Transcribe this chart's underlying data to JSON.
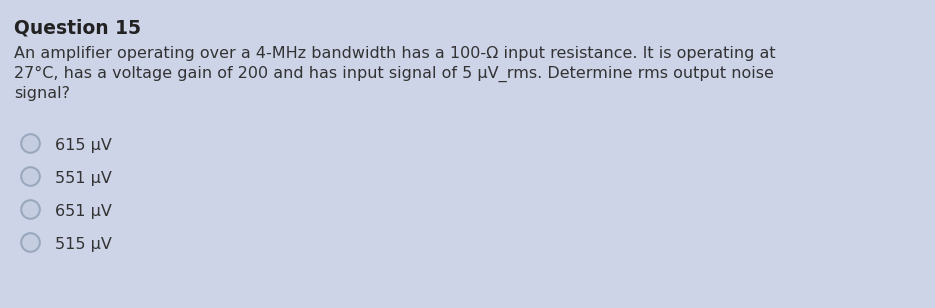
{
  "background_color": "#cdd4e8",
  "title": "Question 15",
  "title_fontsize": 13.5,
  "title_fontweight": "bold",
  "title_color": "#222222",
  "body_lines": [
    "An amplifier operating over a 4-MHz bandwidth has a 100-Ω input resistance. It is operating at",
    "27°C, has a voltage gain of 200 and has input signal of 5 μV_rms. Determine rms output noise",
    "signal?"
  ],
  "body_fontsize": 11.5,
  "body_color": "#333333",
  "options": [
    "615 μV",
    "551 μV",
    "651 μV",
    "515 μV"
  ],
  "option_fontsize": 11.5,
  "option_color": "#333333",
  "radio_edge_color": "#9aa8be",
  "radio_face_color": "#c5cde0"
}
